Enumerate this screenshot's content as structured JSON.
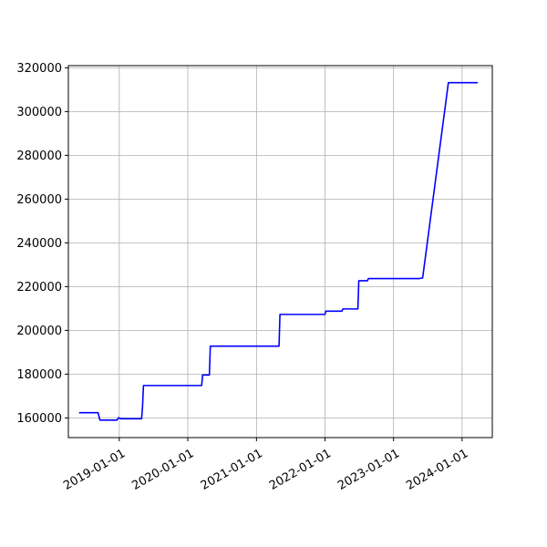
{
  "chart_data": {
    "type": "line",
    "title": "",
    "xlabel": "",
    "ylabel": "",
    "x_scale": "date",
    "xlim": [
      "2018-04-05",
      "2024-06-10"
    ],
    "ylim": [
      151000,
      321000
    ],
    "grid": true,
    "line_color": "#0000ff",
    "x_ticks": [
      "2019-01-01",
      "2020-01-01",
      "2021-01-01",
      "2022-01-01",
      "2023-01-01",
      "2024-01-01"
    ],
    "y_ticks": [
      160000,
      180000,
      200000,
      220000,
      240000,
      260000,
      280000,
      300000,
      320000
    ],
    "series": [
      {
        "points": [
          [
            "2018-06-01",
            162400
          ],
          [
            "2018-09-10",
            162400
          ],
          [
            "2018-09-20",
            159000
          ],
          [
            "2018-12-20",
            159000
          ],
          [
            "2018-12-28",
            160100
          ],
          [
            "2019-01-10",
            159600
          ],
          [
            "2019-04-30",
            159600
          ],
          [
            "2019-05-05",
            165000
          ],
          [
            "2019-05-10",
            174800
          ],
          [
            "2020-03-15",
            174800
          ],
          [
            "2020-03-20",
            179600
          ],
          [
            "2020-04-25",
            179600
          ],
          [
            "2020-04-30",
            192800
          ],
          [
            "2021-05-01",
            192800
          ],
          [
            "2021-05-06",
            207300
          ],
          [
            "2022-01-01",
            207300
          ],
          [
            "2022-01-05",
            208800
          ],
          [
            "2022-04-01",
            208800
          ],
          [
            "2022-04-06",
            209800
          ],
          [
            "2022-06-25",
            209800
          ],
          [
            "2022-06-30",
            222700
          ],
          [
            "2022-08-15",
            222700
          ],
          [
            "2022-08-20",
            223700
          ],
          [
            "2023-05-20",
            223700
          ],
          [
            "2023-06-05",
            224000
          ],
          [
            "2023-10-20",
            313200
          ],
          [
            "2024-03-25",
            313200
          ]
        ]
      }
    ]
  }
}
